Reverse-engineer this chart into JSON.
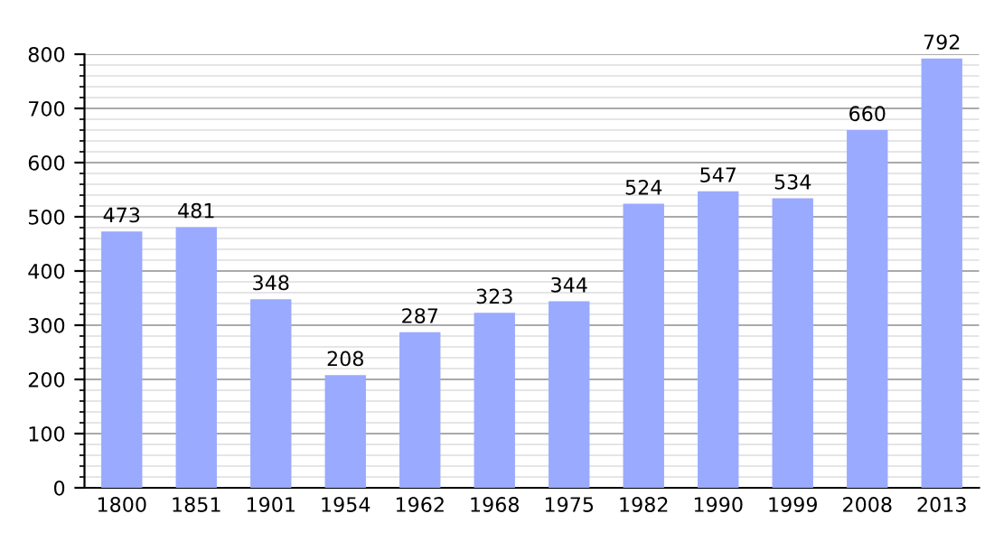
{
  "chart_data": {
    "type": "bar",
    "categories": [
      "1800",
      "1851",
      "1901",
      "1954",
      "1962",
      "1968",
      "1975",
      "1982",
      "1990",
      "1999",
      "2008",
      "2013"
    ],
    "values": [
      473,
      481,
      348,
      208,
      287,
      323,
      344,
      524,
      547,
      534,
      660,
      792
    ],
    "color": "#99aaff",
    "ylim": [
      0,
      800
    ],
    "yticks": [
      0,
      100,
      200,
      300,
      400,
      500,
      600,
      700,
      800
    ],
    "grid": "y",
    "data_labels": true
  }
}
